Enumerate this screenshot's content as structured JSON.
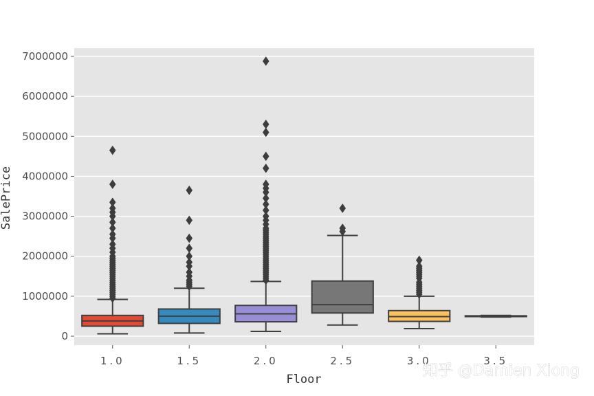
{
  "watermark": "知乎 @Damien Xiong",
  "chart_data": {
    "type": "box",
    "xlabel": "Floor",
    "ylabel": "SalePrice",
    "ylim": [
      -200000,
      7200000
    ],
    "yticks": [
      0,
      1000000,
      2000000,
      3000000,
      4000000,
      5000000,
      6000000,
      7000000
    ],
    "ytick_labels": [
      "0",
      "1000000",
      "2000000",
      "3000000",
      "4000000",
      "5000000",
      "6000000",
      "7000000"
    ],
    "grid": true,
    "background": "#e5e5e5",
    "boxes": [
      {
        "category": "1.0",
        "color": "#e24a33",
        "whisker_low": 60000,
        "q1": 250000,
        "median": 380000,
        "q3": 520000,
        "whisker_high": 920000,
        "outliers": [
          950000,
          1000000,
          1050000,
          1100000,
          1150000,
          1200000,
          1250000,
          1300000,
          1350000,
          1400000,
          1450000,
          1500000,
          1550000,
          1600000,
          1650000,
          1700000,
          1750000,
          1800000,
          1850000,
          1900000,
          1950000,
          2000000,
          2100000,
          2200000,
          2300000,
          2450000,
          2550000,
          2700000,
          2850000,
          3000000,
          3100000,
          3200000,
          3350000,
          3800000,
          4650000
        ]
      },
      {
        "category": "1.5",
        "color": "#348abd",
        "whisker_low": 80000,
        "q1": 320000,
        "median": 500000,
        "q3": 680000,
        "whisker_high": 1200000,
        "outliers": [
          1250000,
          1300000,
          1350000,
          1400000,
          1500000,
          1600000,
          1750000,
          1850000,
          2000000,
          2200000,
          2450000,
          2900000,
          3650000
        ]
      },
      {
        "category": "2.0",
        "color": "#988ed5",
        "whisker_low": 120000,
        "q1": 360000,
        "median": 560000,
        "q3": 770000,
        "whisker_high": 1370000,
        "outliers": [
          1400000,
          1450000,
          1500000,
          1550000,
          1600000,
          1650000,
          1700000,
          1750000,
          1800000,
          1850000,
          1900000,
          1950000,
          2000000,
          2050000,
          2100000,
          2150000,
          2200000,
          2250000,
          2300000,
          2350000,
          2400000,
          2450000,
          2500000,
          2550000,
          2600000,
          2650000,
          2700000,
          2800000,
          2900000,
          3000000,
          3150000,
          3300000,
          3450000,
          3600000,
          3700000,
          3800000,
          4200000,
          4500000,
          5100000,
          5300000,
          6880000
        ]
      },
      {
        "category": "2.5",
        "color": "#777777",
        "whisker_low": 280000,
        "q1": 580000,
        "median": 790000,
        "q3": 1380000,
        "whisker_high": 2520000,
        "outliers": [
          2620000,
          2700000,
          3200000
        ]
      },
      {
        "category": "3.0",
        "color": "#fbc15e",
        "whisker_low": 190000,
        "q1": 370000,
        "median": 490000,
        "q3": 640000,
        "whisker_high": 1000000,
        "outliers": [
          1050000,
          1100000,
          1150000,
          1200000,
          1250000,
          1300000,
          1350000,
          1450000,
          1500000,
          1550000,
          1600000,
          1650000,
          1700000,
          1750000,
          1900000
        ]
      },
      {
        "category": "3.5",
        "color": "#8eba42",
        "whisker_low": 480000,
        "q1": 490000,
        "median": 500000,
        "q3": 510000,
        "whisker_high": 520000,
        "outliers": []
      }
    ]
  }
}
